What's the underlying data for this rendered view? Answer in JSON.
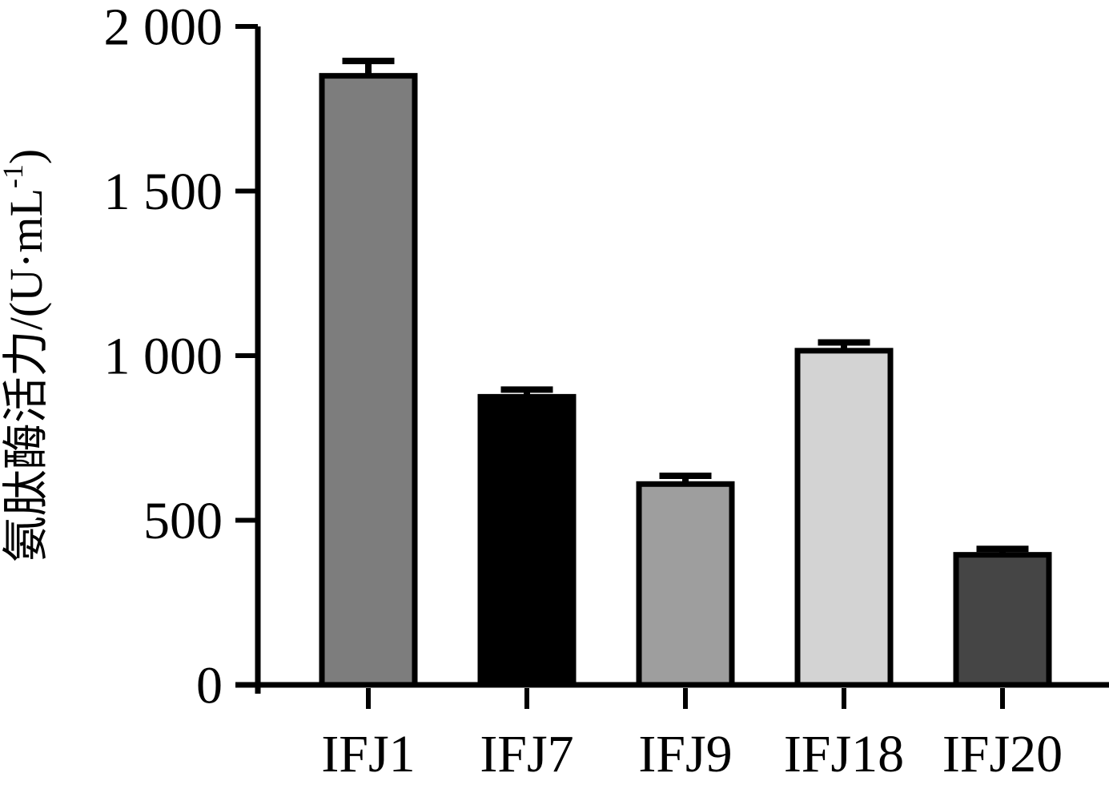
{
  "figure": {
    "background_color": "#ffffff",
    "axis_color": "#000000"
  },
  "chart_data": {
    "type": "bar",
    "title": "",
    "xlabel": "",
    "ylabel": "氨肽酶活力/(U·mL⁻¹)",
    "ylabel_parts": {
      "base": "氨肽酶活力/(U·mL",
      "superscript": "-1",
      "suffix": ")"
    },
    "categories": [
      "IFJ1",
      "IFJ7",
      "IFJ9",
      "IFJ18",
      "IFJ20"
    ],
    "values": [
      1850,
      875,
      610,
      1015,
      395
    ],
    "errors": [
      45,
      22,
      25,
      25,
      18
    ],
    "bar_colors": [
      "#7d7d7d",
      "#000000",
      "#9e9e9e",
      "#d3d3d3",
      "#454545"
    ],
    "bar_border_color": "#000000",
    "error_bar_color": "#000000",
    "error_bars": true,
    "ylim": [
      0,
      2000
    ],
    "yticks": [
      {
        "value": 0,
        "label": "0"
      },
      {
        "value": 500,
        "label": "500"
      },
      {
        "value": 1000,
        "label": "1 000"
      },
      {
        "value": 1500,
        "label": "1 500"
      },
      {
        "value": 2000,
        "label": "2 000"
      }
    ],
    "grid": false,
    "legend": null
  }
}
